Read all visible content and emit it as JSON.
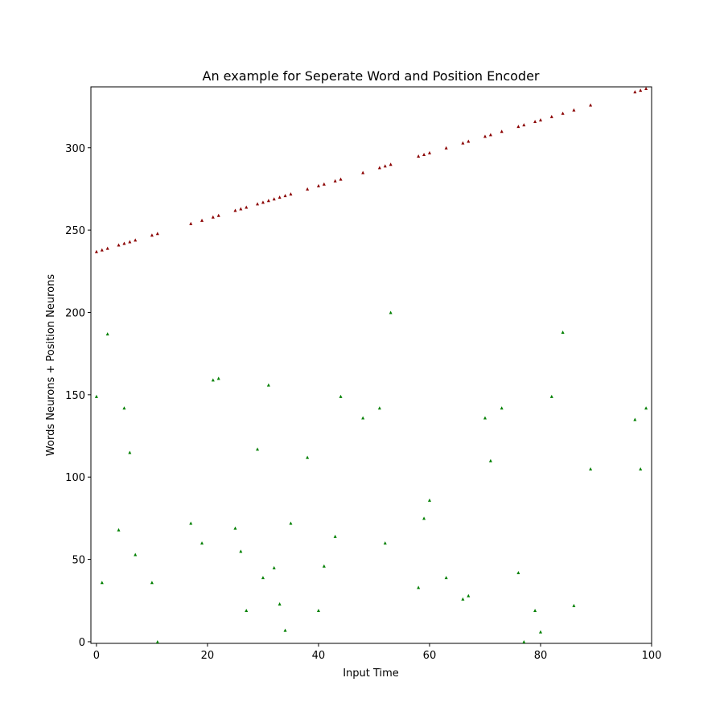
{
  "chart_data": {
    "type": "scatter",
    "title": "An example for Seperate Word and Position Encoder",
    "x_label": "Input Time",
    "y_label": "Words Neurons + Position Neurons",
    "x": [
      0,
      1,
      2,
      4,
      5,
      6,
      7,
      10,
      11,
      17,
      19,
      21,
      22,
      25,
      26,
      27,
      29,
      30,
      31,
      32,
      33,
      34,
      35,
      38,
      40,
      41,
      43,
      44,
      48,
      51,
      52,
      53,
      58,
      59,
      60,
      63,
      66,
      67,
      70,
      71,
      73,
      76,
      77,
      79,
      80,
      82,
      84,
      86,
      89,
      97,
      98,
      99
    ],
    "series": [
      {
        "color": "#008000",
        "values": [
          149,
          36,
          187,
          68,
          142,
          115,
          53,
          36,
          0,
          72,
          60,
          159,
          160,
          69,
          55,
          19,
          117,
          39,
          156,
          45,
          23,
          7,
          72,
          112,
          19,
          46,
          64,
          149,
          136,
          142,
          60,
          200,
          33,
          75,
          86,
          39,
          26,
          28,
          136,
          110,
          142,
          42,
          0,
          19,
          6,
          149,
          188,
          22,
          105,
          135,
          105,
          142
        ]
      },
      {
        "color": "#8b0000",
        "values": [
          237,
          238,
          239,
          241,
          242,
          243,
          244,
          247,
          248,
          254,
          256,
          258,
          259,
          262,
          263,
          264,
          266,
          267,
          268,
          269,
          270,
          271,
          272,
          275,
          277,
          278,
          280,
          281,
          285,
          288,
          289,
          290,
          295,
          296,
          297,
          300,
          303,
          304,
          307,
          308,
          310,
          313,
          314,
          316,
          317,
          319,
          321,
          323,
          326,
          334,
          335,
          336
        ]
      }
    ],
    "xlim": [
      -1,
      100
    ],
    "ylim": [
      -1,
      337
    ],
    "xticks": [
      0,
      20,
      40,
      60,
      80,
      100
    ],
    "yticks": [
      0,
      50,
      100,
      150,
      200,
      250,
      300
    ]
  }
}
